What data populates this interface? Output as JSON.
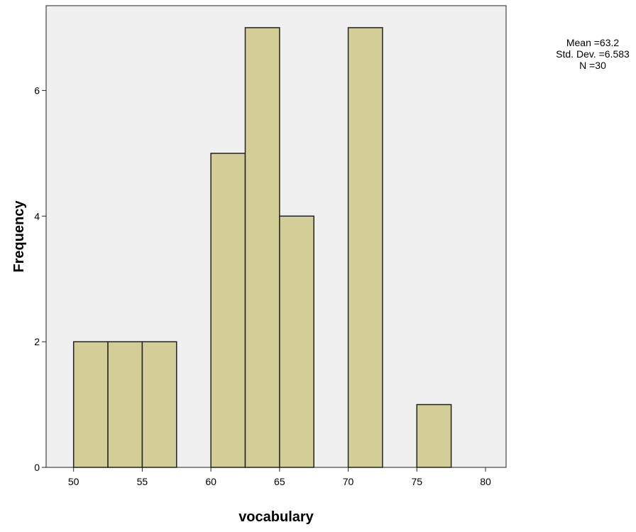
{
  "chart_data": {
    "type": "bar",
    "subtype": "histogram",
    "xlabel": "vocabulary",
    "ylabel": "Frequency",
    "bins": [
      {
        "start": 50,
        "end": 52.5,
        "count": 2
      },
      {
        "start": 52.5,
        "end": 55,
        "count": 2
      },
      {
        "start": 55,
        "end": 57.5,
        "count": 2
      },
      {
        "start": 57.5,
        "end": 60,
        "count": 0
      },
      {
        "start": 60,
        "end": 62.5,
        "count": 5
      },
      {
        "start": 62.5,
        "end": 65,
        "count": 7
      },
      {
        "start": 65,
        "end": 67.5,
        "count": 4
      },
      {
        "start": 67.5,
        "end": 70,
        "count": 0
      },
      {
        "start": 70,
        "end": 72.5,
        "count": 7
      },
      {
        "start": 72.5,
        "end": 75,
        "count": 0
      },
      {
        "start": 75,
        "end": 77.5,
        "count": 1
      }
    ],
    "xlim": [
      48,
      81.5
    ],
    "ylim": [
      0,
      7.35
    ],
    "xticks": [
      50,
      55,
      60,
      65,
      70,
      75,
      80
    ],
    "yticks": [
      0,
      2,
      4,
      6
    ],
    "grid": false,
    "colors": {
      "bar_fill": "#d3ce98",
      "bar_stroke": "#222222",
      "plot_background": "#f0f0f0"
    },
    "stats": {
      "mean": "Mean =63.2",
      "std_dev": "Std. Dev. =6.583",
      "n": "N =30"
    }
  }
}
